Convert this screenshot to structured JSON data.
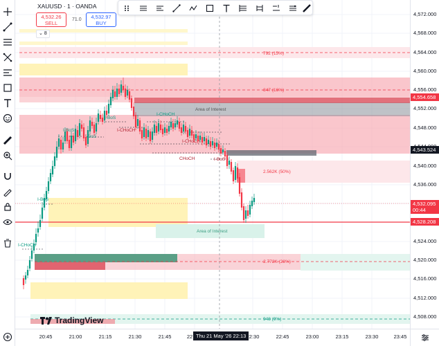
{
  "header": {
    "symbol_title": "XAUUSD · 1 · OANDA",
    "sell_price": "4,532.26",
    "sell_label": "SELL",
    "buy_price": "4,532.97",
    "buy_label": "BUY",
    "spread": "71.0",
    "indicator_count": "8"
  },
  "logo_text": "TradingView",
  "price_axis": {
    "ticks": [
      "4,572.000",
      "4,568.000",
      "4,564.000",
      "4,560.000",
      "4,556.000",
      "4,552.000",
      "4,548.000",
      "4,544.000",
      "4,540.000",
      "4,536.000",
      "4,532.000",
      "4,528.000",
      "4,524.000",
      "4,520.000",
      "4,516.000",
      "4,512.000",
      "4,508.000"
    ],
    "badges": [
      {
        "label": "4,554.658",
        "color": "#f23645"
      },
      {
        "label": "4,543.524",
        "color": "#131722"
      },
      {
        "label": "4,532.095",
        "sub": "00:44",
        "color": "#f23645"
      },
      {
        "label": "4,528.208",
        "color": "#f23645"
      }
    ]
  },
  "time_axis": {
    "ticks": [
      "20:45",
      "21:00",
      "21:15",
      "21:30",
      "21:45",
      "22",
      "22:30",
      "22:45",
      "23:00",
      "23:15",
      "23:30",
      "23:45"
    ],
    "cursor_label": "Thu 21 May '26   22:13"
  },
  "annotations": {
    "pos_top": "792 (15%)",
    "neg_upper": "-847 (16%)",
    "area_interest_upper": "Area of Interest",
    "area_interest_lower": "Area of Interest",
    "pos_mid": "2.562K (50%)",
    "neg_lower": "-2.772K (28%)",
    "pos_bottom": "948 (9%)",
    "structure_labels": [
      "I-BoS",
      "I-BoS",
      "I-BoS",
      "I-CHoCH",
      "I-CHoCH",
      "I-CHoCH",
      "CHoCH",
      "I-BoS",
      "I-BoS",
      "I-CHoCH"
    ]
  },
  "colors": {
    "bull": "#089981",
    "bear": "#f23645",
    "supply_zone": "#f7a8b0",
    "demand_zone": "#fff3b8",
    "interest_zone": "#8a8f99"
  },
  "toolbar_icons": [
    "crosshair-icon",
    "trend-line-icon",
    "fib-icon",
    "pattern-icon",
    "projection-icon",
    "brush-icon",
    "text-icon",
    "emoji-icon",
    "ruler-icon",
    "zoom-icon",
    "magnet-icon",
    "lock-drawing-icon",
    "lock-icon",
    "eye-icon",
    "trash-icon"
  ],
  "draw_toolbar_icons": [
    "drag-handle-icon",
    "brush-icon",
    "line-style-icon",
    "line-width-icon",
    "extend-icon",
    "ray-icon",
    "rectangle-icon",
    "text-icon",
    "fib-tool-icon",
    "regression-icon",
    "position-icon",
    "ruler-tool-icon"
  ]
}
